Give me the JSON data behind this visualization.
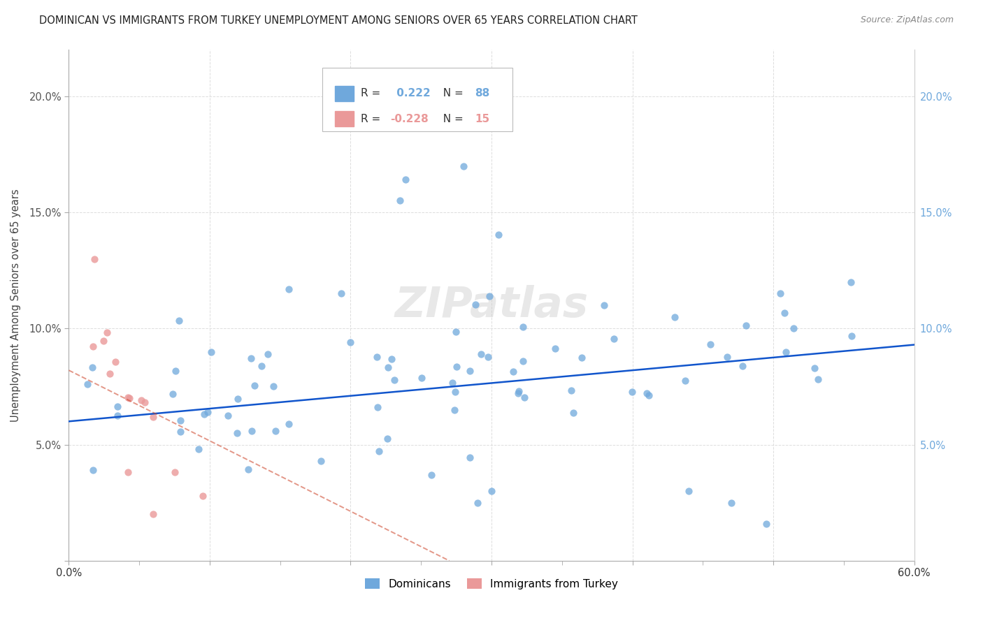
{
  "title": "DOMINICAN VS IMMIGRANTS FROM TURKEY UNEMPLOYMENT AMONG SENIORS OVER 65 YEARS CORRELATION CHART",
  "source": "Source: ZipAtlas.com",
  "ylabel": "Unemployment Among Seniors over 65 years",
  "xlim": [
    0.0,
    0.6
  ],
  "ylim": [
    0.0,
    0.22
  ],
  "xticks": [
    0.0,
    0.1,
    0.2,
    0.3,
    0.4,
    0.5,
    0.6
  ],
  "xticklabels": [
    "0.0%",
    "",
    "",
    "",
    "",
    "",
    "60.0%"
  ],
  "yticks": [
    0.0,
    0.05,
    0.1,
    0.15,
    0.2
  ],
  "yticklabels_left": [
    "",
    "5.0%",
    "10.0%",
    "15.0%",
    "20.0%"
  ],
  "yticklabels_right": [
    "",
    "5.0%",
    "10.0%",
    "15.0%",
    "20.0%"
  ],
  "dominican_R": 0.222,
  "dominican_N": 88,
  "turkey_R": -0.228,
  "turkey_N": 15,
  "dominican_color": "#6fa8dc",
  "turkey_color": "#ea9999",
  "trend_dominican_color": "#1155cc",
  "trend_turkey_color": "#cc4125",
  "background_color": "#FFFFFF",
  "watermark": "ZIPatlas",
  "dom_trend_x0": 0.0,
  "dom_trend_y0": 0.06,
  "dom_trend_x1": 0.6,
  "dom_trend_y1": 0.093,
  "tur_trend_x0": 0.0,
  "tur_trend_y0": 0.082,
  "tur_trend_x1": 0.27,
  "tur_trend_y1": 0.0
}
